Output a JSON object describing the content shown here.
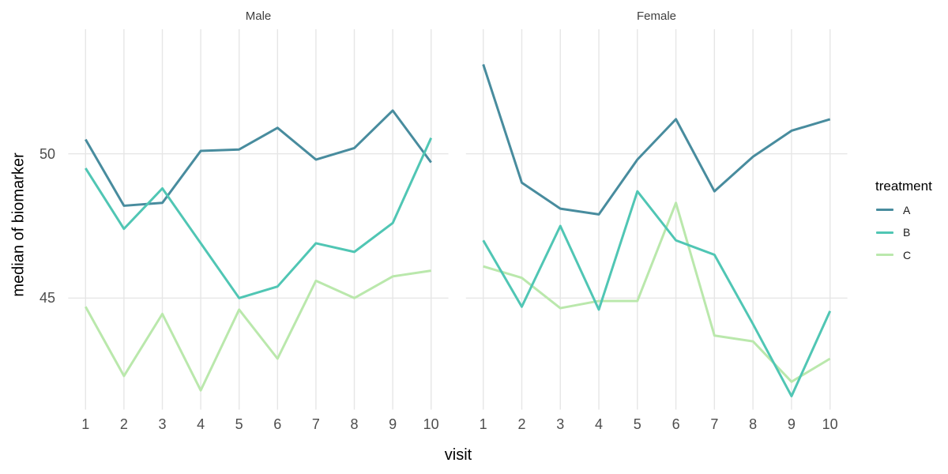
{
  "chart_data": {
    "type": "line",
    "title": "",
    "xlabel": "visit",
    "ylabel": "median of biomarker",
    "legend_title": "treatment",
    "legend_position": "right",
    "grid": "major-only",
    "x": [
      1,
      2,
      3,
      4,
      5,
      6,
      7,
      8,
      9,
      10
    ],
    "x_axis_ticks": [
      "1",
      "2",
      "3",
      "4",
      "5",
      "6",
      "7",
      "8",
      "9",
      "10"
    ],
    "y_axis_ticks": [
      "50",
      "45"
    ],
    "y_axis_tick_values": [
      50,
      45
    ],
    "ylim_shown": [
      41.1,
      54.3
    ],
    "facets": [
      {
        "label": "Male",
        "series": [
          {
            "name": "A",
            "color": "#488c9e",
            "values": [
              50.5,
              48.2,
              48.3,
              50.1,
              50.15,
              50.9,
              49.8,
              50.2,
              51.5,
              49.7
            ]
          },
          {
            "name": "B",
            "color": "#50c6b4",
            "values": [
              49.5,
              47.4,
              48.8,
              46.9,
              45.0,
              45.4,
              46.9,
              46.6,
              47.6,
              50.55
            ]
          },
          {
            "name": "C",
            "color": "#bae8ac",
            "values": [
              44.7,
              42.3,
              44.45,
              41.8,
              44.6,
              42.9,
              45.6,
              45.0,
              45.75,
              45.95
            ]
          }
        ]
      },
      {
        "label": "Female",
        "series": [
          {
            "name": "A",
            "color": "#488c9e",
            "values": [
              53.1,
              49.0,
              48.1,
              47.9,
              49.8,
              51.2,
              48.7,
              49.9,
              50.8,
              51.2
            ]
          },
          {
            "name": "B",
            "color": "#50c6b4",
            "values": [
              47.0,
              44.7,
              47.5,
              44.6,
              48.7,
              47.0,
              46.5,
              44.1,
              41.6,
              44.55
            ]
          },
          {
            "name": "C",
            "color": "#bae8ac",
            "values": [
              46.1,
              45.7,
              44.65,
              44.9,
              44.9,
              48.3,
              43.7,
              43.5,
              42.1,
              42.9
            ]
          }
        ]
      }
    ],
    "colors": {
      "background": "#ffffff",
      "grid": "#e6e6e6",
      "axis_text": "#4d4d4d",
      "axis_title_text": "#000000",
      "strip_text": "#404040"
    }
  }
}
